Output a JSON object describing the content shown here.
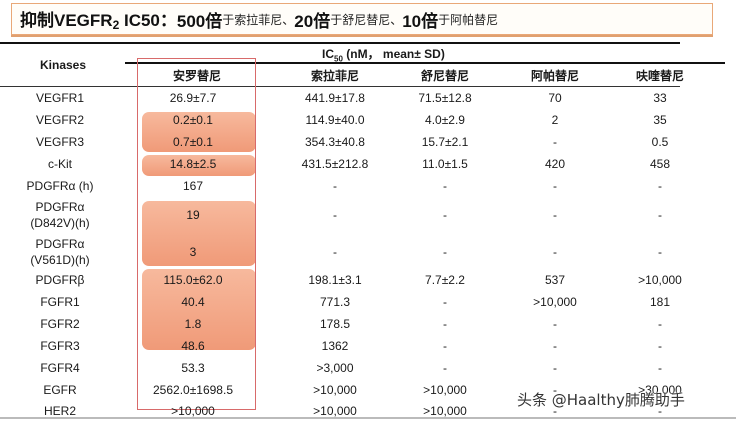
{
  "title": {
    "prefix": "抑制VEGFR",
    "sub": "2",
    "ic50": " IC50：",
    "parts": [
      {
        "bold": "500倍",
        "small": "于索拉菲尼、"
      },
      {
        "bold": "20倍",
        "small": "于舒尼替尼、"
      },
      {
        "bold": "10倍",
        "small": "于阿帕替尼"
      }
    ]
  },
  "table": {
    "kinases_header": "Kinases",
    "ic50_header": {
      "ic": "IC",
      "sub": "50",
      "rest": " (nM， mean± SD)"
    },
    "columns": [
      "安罗替尼",
      "索拉菲尼",
      "舒尼替尼",
      "阿帕替尼",
      "呋喹替尼"
    ],
    "rows": [
      {
        "kinase": "VEGFR1",
        "values": [
          "26.9±7.7",
          "441.9±17.8",
          "71.5±12.8",
          "70",
          "33"
        ]
      },
      {
        "kinase": "VEGFR2",
        "values": [
          "0.2±0.1",
          "114.9±40.0",
          "4.0±2.9",
          "2",
          "35"
        ]
      },
      {
        "kinase": "VEGFR3",
        "values": [
          "0.7±0.1",
          "354.3±40.8",
          "15.7±2.1",
          "-",
          "0.5"
        ]
      },
      {
        "kinase": "c-Kit",
        "values": [
          "14.8±2.5",
          "431.5±212.8",
          "11.0±1.5",
          "420",
          "458"
        ]
      },
      {
        "kinase": "PDGFRα (h)",
        "values": [
          "167",
          "-",
          "-",
          "-",
          "-"
        ]
      },
      {
        "kinase": "PDGFRα",
        "kinase2": "(D842V)(h)",
        "values": [
          "19",
          "-",
          "-",
          "-",
          "-"
        ]
      },
      {
        "kinase": "PDGFRα",
        "kinase2": "(V561D)(h)",
        "values": [
          "3",
          "-",
          "-",
          "-",
          "-"
        ]
      },
      {
        "kinase": "PDGFRβ",
        "values": [
          "115.0±62.0",
          "198.1±3.1",
          "7.7±2.2",
          "537",
          ">10,000"
        ]
      },
      {
        "kinase": "FGFR1",
        "values": [
          "40.4",
          "771.3",
          "-",
          ">10,000",
          "181"
        ]
      },
      {
        "kinase": "FGFR2",
        "values": [
          "1.8",
          "178.5",
          "-",
          "-",
          "-"
        ]
      },
      {
        "kinase": "FGFR3",
        "values": [
          "48.6",
          "1362",
          "-",
          "-",
          "-"
        ]
      },
      {
        "kinase": "FGFR4",
        "values": [
          "53.3",
          ">3,000",
          "-",
          "-",
          "-"
        ]
      },
      {
        "kinase": "EGFR",
        "values": [
          "2562.0±1698.5",
          ">10,000",
          ">10,000",
          "-",
          ">30,000"
        ]
      },
      {
        "kinase": "HER2",
        "values": [
          ">10,000",
          ">10,000",
          ">10,000",
          "-",
          "-"
        ]
      }
    ]
  },
  "watermark": "头条 @Haalthy肺腾助手",
  "colors": {
    "highlight": "#f4a886",
    "redbox": "#d86a6a",
    "title_border": "#e9a878"
  }
}
